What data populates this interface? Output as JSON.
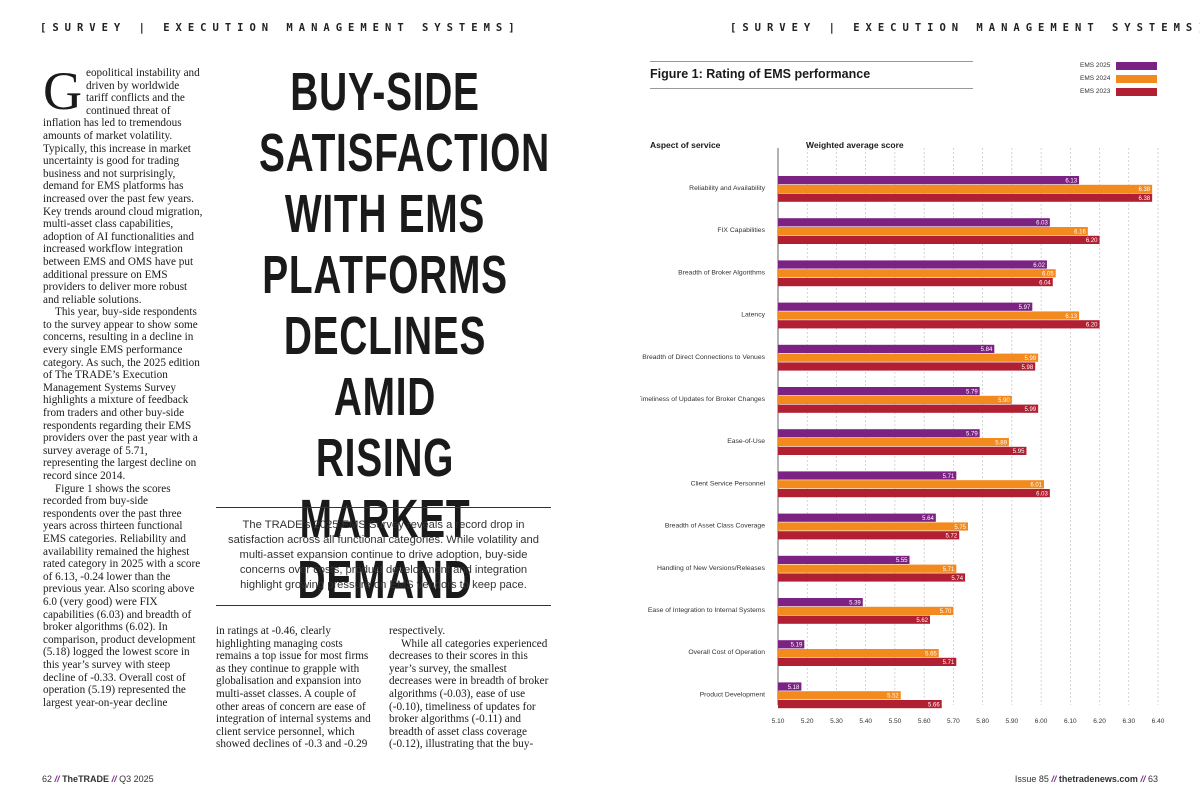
{
  "header": {
    "left_section": "[SURVEY | EXECUTION MANAGEMENT SYSTEMS]",
    "right_section": "[SURVEY | EXECUTION MANAGEMENT SYSTEMS]"
  },
  "article": {
    "dropcap": "G",
    "col1": [
      "eopolitical instability and driven by worldwide tariff conflicts and the continued threat of inflation has led to tremendous amounts of market volatility. Typically, this increase in market uncertainty is good for trading business and not surprisingly, demand for EMS platforms has increased over the past few years. Key trends around cloud migration, multi-asset class capabilities, adoption of AI functionalities and increased workflow integration between EMS and OMS have put additional pressure on EMS providers to deliver more robust and reliable solutions.",
      "This year, buy-side respondents to the survey appear to show some concerns, resulting in a decline in every single EMS performance category. As such, the 2025 edition of The TRADE’s Execution Management Systems Survey highlights a mixture of feedback from traders and other buy-side respondents regarding their EMS providers over the past year with a survey average of 5.71, representing the largest decline on record since 2014.",
      "Figure 1 shows the scores recorded from buy-side respondents over the past three years across thirteen functional EMS categories. Reliability and availability remained the highest rated category in 2025 with a score of 6.13, -0.24 lower than the previous year. Also scoring above 6.0 (very good) were FIX capabilities (6.03) and breadth of broker algorithms (6.02). In comparison, product development (5.18) logged the lowest score in this year’s survey with steep decline of -0.33. Overall cost of operation (5.19) represented the largest year-on-year decline"
    ],
    "col2": "in ratings at -0.46, clearly highlighting managing costs remains a top issue for most firms as they continue to grapple with globalisation and expansion into multi-asset classes. A couple of other areas of concern are ease of integration of internal systems and client service personnel, which showed declines of -0.3 and -0.29",
    "col3": [
      "respectively.",
      "While all categories experienced decreases to their scores in this year’s survey, the smallest decreases were in breadth of broker algorithms (-0.03), ease of use (-0.10), timeliness of updates for broker algorithms (-0.11) and breadth of asset class coverage (-0.12), illustrating that the buy-"
    ],
    "headline_lines": [
      "BUY-SIDE",
      "SATISFACTION",
      "WITH EMS",
      "PLATFORMS",
      "DECLINES AMID",
      "RISING MARKET",
      "DEMAND"
    ],
    "standfirst": "The TRADE’s 2025 EMS Survey reveals a record drop in satisfaction across all functional categories. While volatility and multi-asset expansion continue to drive adoption, buy-side concerns over costs, product development and integration highlight growing pressure on EMS vendors to keep pace."
  },
  "footer": {
    "left_page": "62",
    "left_brand": "TheTRADE",
    "left_issue": "Q3 2025",
    "right_issue": "Issue 85",
    "right_site": "thetradenews.com",
    "right_page": "63",
    "sep": "//"
  },
  "colors": {
    "ems2025": "#7b2282",
    "ems2024": "#f28a1e",
    "ems2023": "#b01f32"
  },
  "chart_data": {
    "type": "bar",
    "orientation": "horizontal",
    "title": "Figure 1: Rating of EMS performance",
    "ylabel": "Aspect of service",
    "xlabel": "Weighted average score",
    "xlim": [
      5.1,
      6.4
    ],
    "ticks": [
      "5.10",
      "5.20",
      "5.30",
      "5.40",
      "5.50",
      "5.60",
      "5.70",
      "5.80",
      "5.90",
      "6.00",
      "6.10",
      "6.20",
      "6.30",
      "6.40"
    ],
    "legend_position": "top-right",
    "categories": [
      "Reliability and Availability",
      "FIX Capabilities",
      "Breadth of Broker Algorithms",
      "Latency",
      "Breadth of Direct Connections to Venues",
      "Timeliness of Updates for Broker Changes",
      "Ease-of-Use",
      "Client Service Personnel",
      "Breadth of Asset Class Coverage",
      "Handling of New Versions/Releases",
      "Ease of Integration to Internal Systems",
      "Overall Cost of Operation",
      "Product Development"
    ],
    "series": [
      {
        "name": "EMS 2025",
        "labels": [
          "6.13",
          "6.03",
          "6.02",
          "5.97",
          "5.84",
          "5.79",
          "5.79",
          "5.71",
          "5.64",
          "5.55",
          "5.39",
          "5.19",
          "5.18"
        ],
        "values": [
          6.13,
          6.03,
          6.02,
          5.97,
          5.84,
          5.79,
          5.79,
          5.71,
          5.64,
          5.55,
          5.39,
          5.19,
          5.18
        ]
      },
      {
        "name": "EMS 2024",
        "labels": [
          "6.38",
          "6.16",
          "6.05",
          "6.13",
          "5.99",
          "5.90",
          "5.89",
          "6.01",
          "5.75",
          "5.71",
          "5.70",
          "5.65",
          "5.52"
        ],
        "values": [
          6.38,
          6.16,
          6.05,
          6.13,
          5.99,
          5.9,
          5.89,
          6.01,
          5.75,
          5.71,
          5.7,
          5.65,
          5.52
        ]
      },
      {
        "name": "EMS 2023",
        "labels": [
          "6.38",
          "6.20",
          "6.04",
          "6.20",
          "5.98",
          "5.99",
          "5.95",
          "6.03",
          "5.72",
          "5.74",
          "5.62",
          "5.71",
          "5.66"
        ],
        "values": [
          6.38,
          6.2,
          6.04,
          6.2,
          5.98,
          5.99,
          5.95,
          6.03,
          5.72,
          5.74,
          5.62,
          5.71,
          5.66
        ]
      }
    ]
  }
}
